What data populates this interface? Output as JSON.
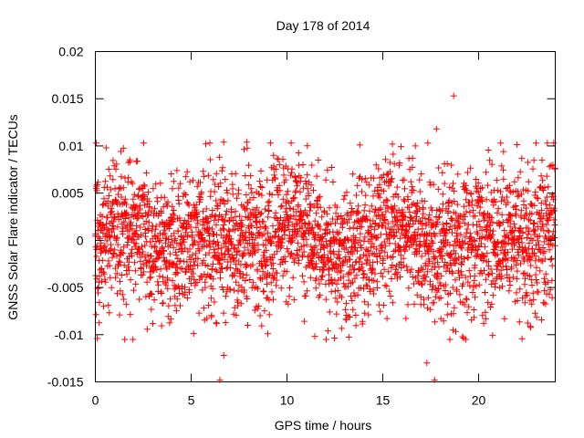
{
  "chart_data": {
    "type": "scatter",
    "title": "Day 178 of 2014",
    "xlabel": "GPS time / hours",
    "ylabel": "GNSS Solar Flare indicator / TECUs",
    "xlim": [
      0,
      24
    ],
    "ylim": [
      -0.015,
      0.02
    ],
    "xticks": [
      0,
      5,
      10,
      15,
      20
    ],
    "xtick_labels": [
      "0",
      "5",
      "10",
      "15",
      "20"
    ],
    "yticks": [
      -0.015,
      -0.01,
      -0.005,
      0,
      0.005,
      0.01,
      0.015,
      0.02
    ],
    "ytick_labels": [
      "-0.015",
      "-0.01",
      "-0.005",
      "0",
      "0.005",
      "0.01",
      "0.015",
      "0.02"
    ],
    "grid": false,
    "legend": "none",
    "marker": "plus",
    "series": [
      {
        "name": "GNSS Solar Flare indicator",
        "color": "#ff0000",
        "n_points": 2880,
        "x_step_hours": 0.008333,
        "typical_std": 0.0035,
        "typical_range": [
          -0.01,
          0.01
        ],
        "notable_points": [
          {
            "x": 18.7,
            "y": 0.0153
          },
          {
            "x": 6.7,
            "y": -0.0122
          },
          {
            "x": 6.5,
            "y": -0.0148
          },
          {
            "x": 17.7,
            "y": -0.0148
          },
          {
            "x": 17.3,
            "y": -0.013
          },
          {
            "x": 17.8,
            "y": 0.0118
          },
          {
            "x": 0.05,
            "y": 0.0103
          },
          {
            "x": 6.7,
            "y": 0.0104
          },
          {
            "x": 7.9,
            "y": 0.0104
          },
          {
            "x": 15.5,
            "y": 0.0102
          },
          {
            "x": 16.7,
            "y": 0.01
          },
          {
            "x": 21.3,
            "y": 0.0094
          },
          {
            "x": 0.1,
            "y": -0.0104
          },
          {
            "x": 9.0,
            "y": -0.0099
          },
          {
            "x": 18.5,
            "y": -0.0105
          },
          {
            "x": 23.7,
            "y": 0.0078
          },
          {
            "x": 13.8,
            "y": 0.0101
          }
        ]
      }
    ]
  },
  "colors": {
    "background": "#ffffff",
    "axis": "#000000",
    "series": "#ff0000"
  }
}
